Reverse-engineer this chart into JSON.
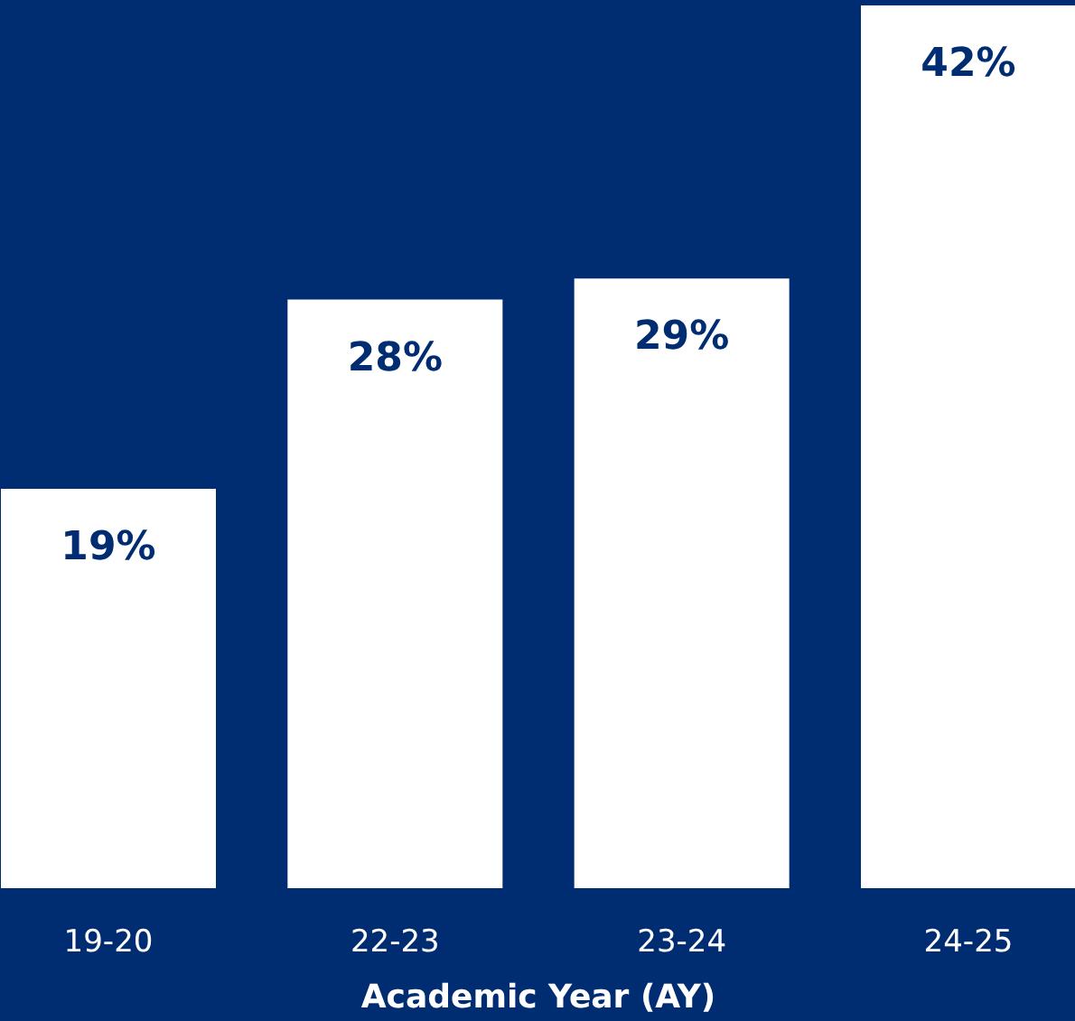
{
  "chart_data": {
    "type": "bar",
    "xlabel": "Academic Year (AY)",
    "categories": [
      "19-20",
      "22-23",
      "23-24",
      "24-25"
    ],
    "values": [
      19,
      28,
      29,
      42
    ],
    "value_labels": [
      "19%",
      "28%",
      "29%",
      "42%"
    ],
    "color": "#ffffff",
    "grid": false
  }
}
